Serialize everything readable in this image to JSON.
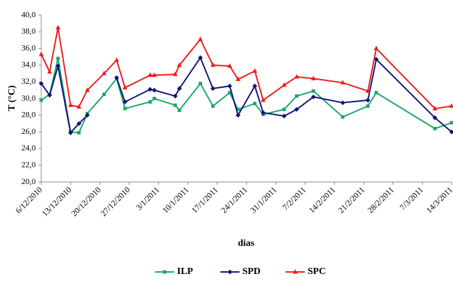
{
  "chart_data": {
    "type": "line",
    "y_label": "T (°C)",
    "x_label": "dias",
    "x": [
      "6/12/2010",
      "8/12/2010",
      "10/12/2010",
      "13/12/2010",
      "15/12/2010",
      "17/12/2010",
      "21/12/2010",
      "24/12/2010",
      "26/12/2010",
      "1/1/2011",
      "2/1/2011",
      "7/1/2011",
      "8/1/2011",
      "13/1/2011",
      "16/1/2011",
      "20/1/2011",
      "22/1/2011",
      "26/1/2011",
      "28/1/2011",
      "2/2/2011",
      "5/2/2011",
      "9/2/2011",
      "16/2/2011",
      "22/2/2011",
      "24/2/2011",
      "10/3/2011",
      "14/3/2011"
    ],
    "series": [
      {
        "name": "ILP",
        "color": "#1aa86a",
        "marker": "square",
        "values": [
          29.8,
          30.5,
          34.8,
          26.0,
          25.9,
          28.2,
          30.5,
          32.4,
          28.8,
          29.6,
          30.0,
          29.2,
          28.6,
          31.8,
          29.1,
          30.7,
          28.7,
          29.4,
          28.1,
          28.7,
          30.3,
          30.9,
          27.8,
          29.1,
          30.7,
          26.4,
          27.1
        ]
      },
      {
        "name": "SPD",
        "color": "#14147a",
        "marker": "diamond",
        "values": [
          31.8,
          30.4,
          33.9,
          25.9,
          27.0,
          28.0,
          null,
          32.5,
          29.6,
          31.1,
          31.0,
          30.3,
          31.2,
          34.9,
          31.2,
          31.5,
          28.0,
          31.5,
          28.3,
          27.9,
          28.7,
          30.2,
          29.5,
          29.8,
          34.7,
          27.7,
          26.0
        ]
      },
      {
        "name": "SPC",
        "color": "#ee1c1c",
        "marker": "triangle",
        "values": [
          35.3,
          33.2,
          38.5,
          29.2,
          29.0,
          31.0,
          33.0,
          34.6,
          31.3,
          32.8,
          32.8,
          32.9,
          34.0,
          37.1,
          34.0,
          33.9,
          32.3,
          33.3,
          29.8,
          31.6,
          32.6,
          32.4,
          31.9,
          30.9,
          36.0,
          28.8,
          29.1
        ]
      }
    ],
    "xlim": [
      "6/12/2010",
      "14/3/2011"
    ],
    "xticks": [
      "6/12/2010",
      "13/12/2010",
      "20/12/2010",
      "27/12/2010",
      "3/1/2011",
      "10/1/2011",
      "17/1/2011",
      "24/1/2011",
      "31/1/2011",
      "7/2/2011",
      "14/2/2011",
      "21/2/2011",
      "28/2/2011",
      "7/3/2011",
      "14/3/2011"
    ],
    "ylim": [
      20,
      40
    ],
    "yticks": [
      {
        "value": 20,
        "label": "20,0"
      },
      {
        "value": 22,
        "label": "22,0"
      },
      {
        "value": 24,
        "label": "24,0"
      },
      {
        "value": 26,
        "label": "26,0"
      },
      {
        "value": 28,
        "label": "28,0"
      },
      {
        "value": 30,
        "label": "30,0"
      },
      {
        "value": 32,
        "label": "32,0"
      },
      {
        "value": 34,
        "label": "34,0"
      },
      {
        "value": 36,
        "label": "36,0"
      },
      {
        "value": 38,
        "label": "38,0"
      },
      {
        "value": 40,
        "label": "40,0"
      }
    ],
    "legend": "bottom"
  }
}
